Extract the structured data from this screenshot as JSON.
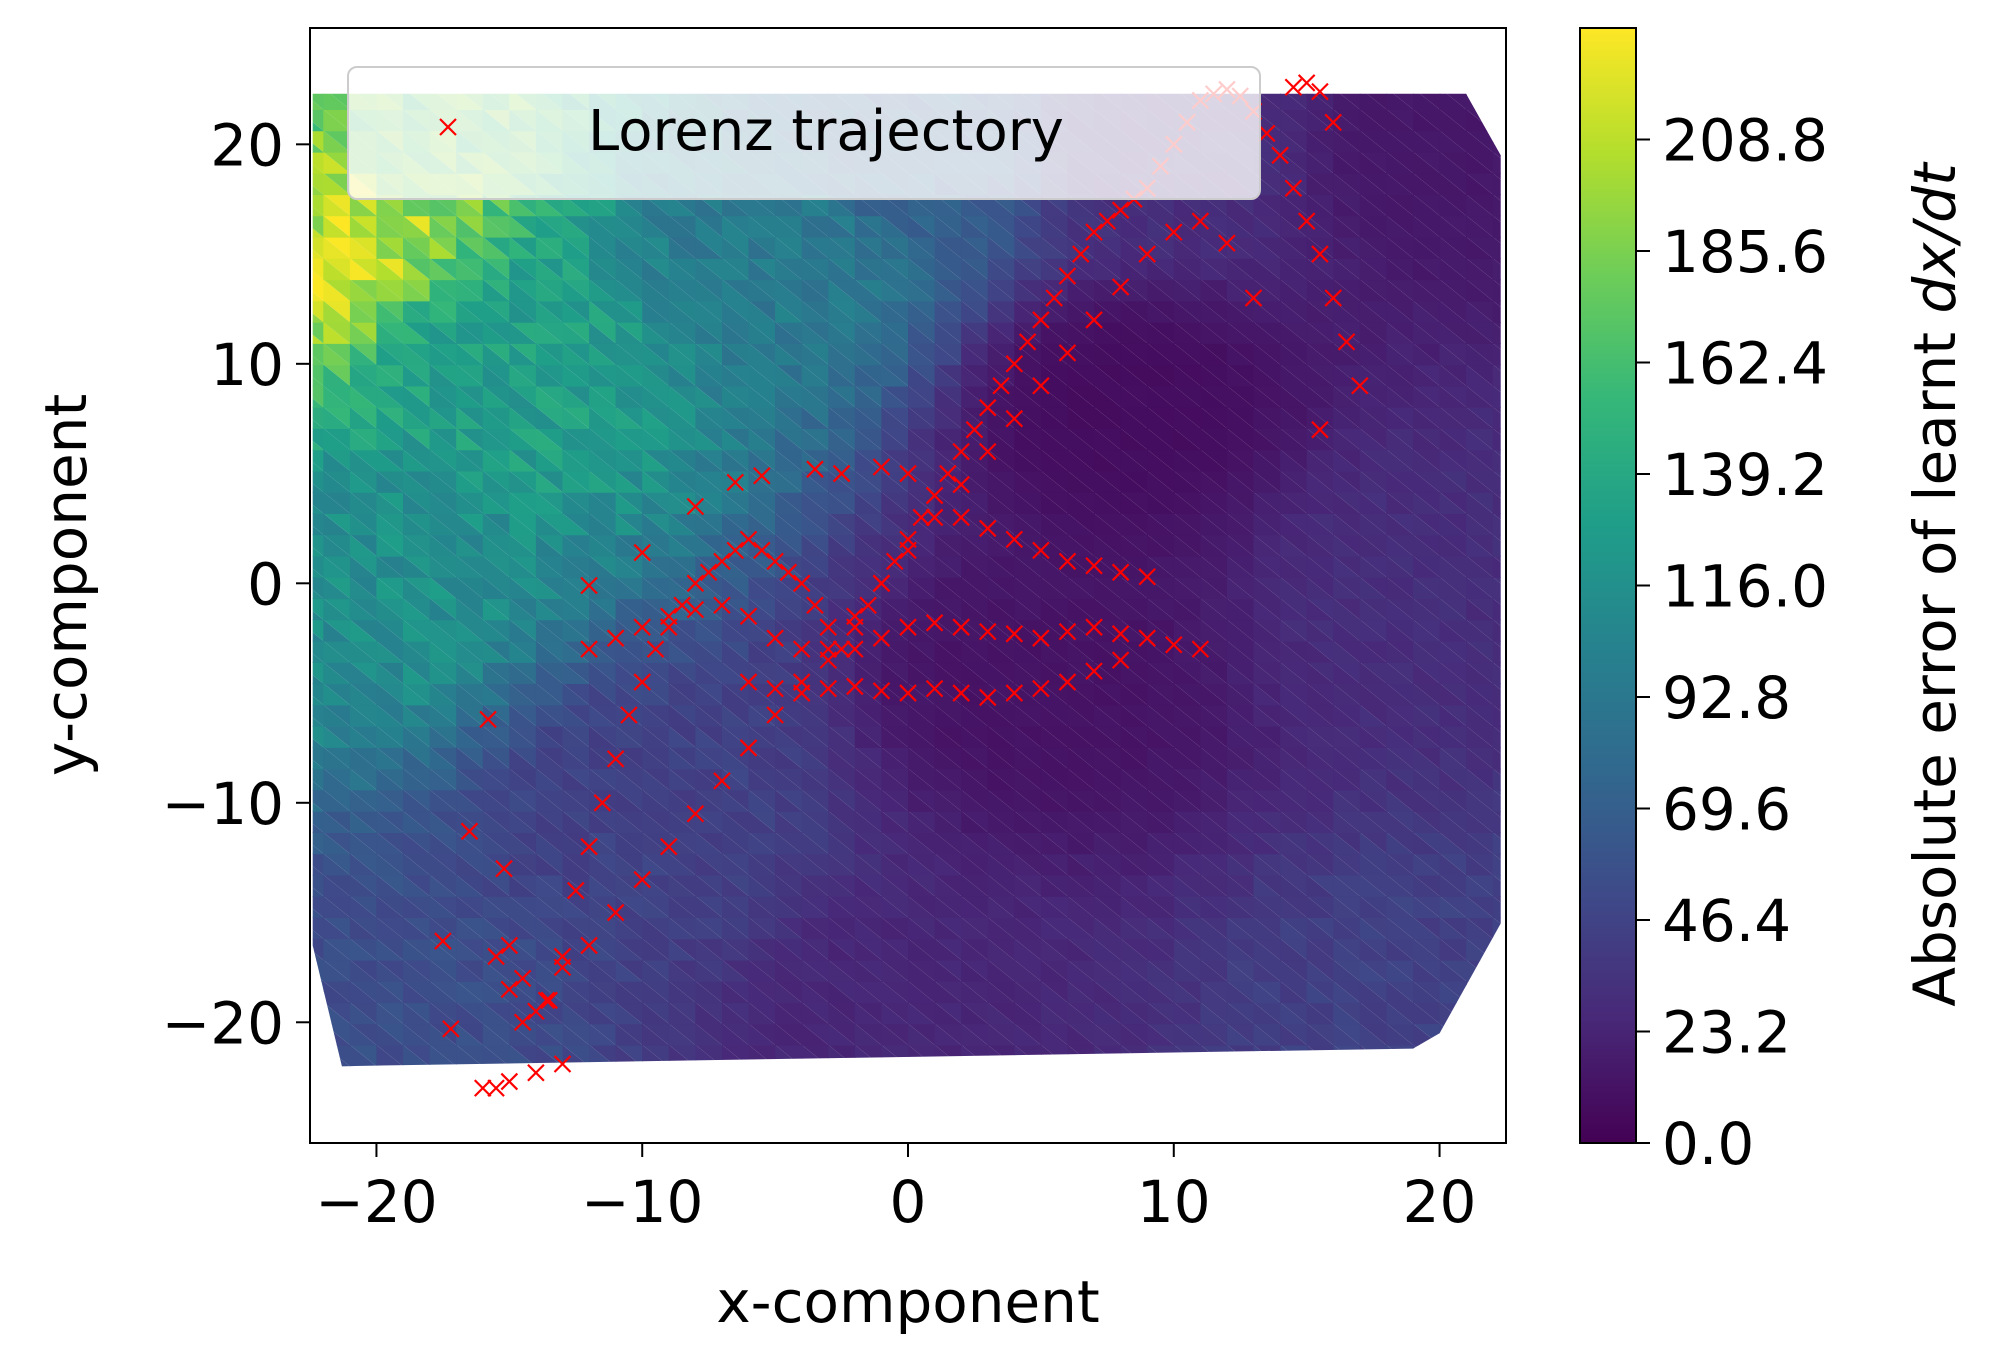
{
  "chart_data": {
    "type": "heatmap",
    "xlabel": "x-component",
    "ylabel": "y-component",
    "xlim": [
      -22.5,
      22.5
    ],
    "ylim": [
      -25.5,
      25.3
    ],
    "x_ticks": [
      -20,
      -10,
      0,
      10,
      20
    ],
    "x_tick_labels": [
      "−20",
      "−10",
      "0",
      "10",
      "20"
    ],
    "y_ticks": [
      -20,
      -10,
      0,
      10,
      20
    ],
    "y_tick_labels": [
      "−20",
      "−10",
      "0",
      "10",
      "20"
    ],
    "grid": false,
    "legend": {
      "position": "top-left",
      "entries": [
        "Lorenz trajectory"
      ]
    },
    "colorbar": {
      "label": "Absolute error of learnt dx/dt",
      "label_prefix": "Absolute error of learnt ",
      "label_math": "dx/dt",
      "colormap": "viridis",
      "range": [
        0,
        232
      ],
      "ticks": [
        0,
        23.2,
        46.4,
        69.6,
        92.8,
        116,
        139.2,
        162.4,
        185.6,
        208.8
      ],
      "tick_labels": [
        "0.0",
        "23.2",
        "46.4",
        "69.6",
        "92.8",
        "116.0",
        "139.2",
        "162.4",
        "185.6",
        "208.8"
      ]
    },
    "heatmap_domain": {
      "polygon": [
        [
          -22.1,
          22.3
        ],
        [
          21.0,
          22.3
        ],
        [
          22.3,
          19.5
        ],
        [
          22.3,
          -15.5
        ],
        [
          20.0,
          -20.5
        ],
        [
          19.0,
          -21.2
        ],
        [
          -21.3,
          -22.0
        ],
        [
          -22.4,
          -16.5
        ],
        [
          -22.4,
          22.3
        ]
      ],
      "error_field_anchors": [
        {
          "x": -22,
          "y": 16,
          "value": 210
        },
        {
          "x": -20,
          "y": 22,
          "value": 175
        },
        {
          "x": -20,
          "y": 0,
          "value": 115
        },
        {
          "x": -15,
          "y": 10,
          "value": 130
        },
        {
          "x": -5,
          "y": 15,
          "value": 95
        },
        {
          "x": 0,
          "y": 20,
          "value": 70
        },
        {
          "x": 10,
          "y": 20,
          "value": 30
        },
        {
          "x": 20,
          "y": 20,
          "value": 15
        },
        {
          "x": 20,
          "y": 0,
          "value": 30
        },
        {
          "x": 20,
          "y": -20,
          "value": 45
        },
        {
          "x": 0,
          "y": -20,
          "value": 25
        },
        {
          "x": -20,
          "y": -20,
          "value": 55
        },
        {
          "x": -10,
          "y": -10,
          "value": 45
        },
        {
          "x": 5,
          "y": -5,
          "value": 12
        },
        {
          "x": 8,
          "y": 8,
          "value": 8
        }
      ]
    },
    "series": [
      {
        "name": "Lorenz trajectory",
        "type": "scatter",
        "marker": "x",
        "color": "#ff0000",
        "x": [
          -17.5,
          -17.2,
          -16.5,
          -15.8,
          -15.2,
          -15.0,
          -14.5,
          -14.0,
          -13.6,
          -13.0,
          -12.5,
          -12.0,
          -11.5,
          -11.0,
          -10.5,
          -10.0,
          -9.5,
          -9.0,
          -8.5,
          -8.0,
          -7.5,
          -7.0,
          -6.5,
          -6.0,
          -5.5,
          -5.0,
          -4.5,
          -4.0,
          -3.5,
          -3.0,
          -2.5,
          -2.0,
          -1.5,
          -1.0,
          -0.5,
          0.0,
          0.5,
          1.0,
          1.5,
          2.0,
          2.5,
          3.0,
          3.5,
          4.0,
          4.5,
          5.0,
          5.5,
          6.0,
          6.5,
          7.0,
          7.5,
          8.0,
          8.5,
          9.0,
          9.5,
          10.0,
          10.5,
          11.0,
          11.5,
          12.0,
          12.5,
          13.0,
          13.5,
          14.0,
          14.5,
          15.0,
          15.5,
          16.0,
          16.5,
          17.0,
          -15.5,
          -15.0,
          -14.5,
          -13.5,
          -13.0,
          -12.0,
          -11.0,
          -10.0,
          -9.0,
          -8.0,
          -7.0,
          -6.0,
          -5.0,
          -4.0,
          -3.0,
          -2.0,
          -1.0,
          0.0,
          1.0,
          2.0,
          3.0,
          4.0,
          5.0,
          6.0,
          7.0,
          8.0,
          9.0,
          10.0,
          11.0,
          12.0,
          13.0,
          -6.5,
          -5.5,
          -3.5,
          -2.5,
          -1.0,
          0.0,
          1.0,
          2.0,
          3.0,
          4.0,
          5.0,
          6.0,
          7.0,
          8.0,
          9.0,
          -12.0,
          -11.0,
          -10.0,
          -9.0,
          -8.0,
          -7.0,
          -6.0,
          -5.0,
          -4.0,
          -3.0,
          -2.0,
          -1.0,
          0.0,
          1.0,
          2.0,
          3.0,
          4.0,
          5.0,
          6.0,
          7.0,
          8.0,
          9.0,
          10.0,
          11.0,
          -6.0,
          -5.0,
          -4.0,
          -3.0,
          -2.0,
          -1.0,
          0.0,
          1.0,
          2.0,
          3.0,
          4.0,
          5.0,
          6.0,
          7.0,
          8.0,
          14.5,
          15.0,
          15.5,
          16.0,
          15.5,
          -16.0,
          -15.5,
          -15.0,
          -14.0,
          -13.0,
          -12.0,
          -10.0,
          -8.0
        ],
        "y": [
          -16.3,
          -20.3,
          -11.3,
          -6.2,
          -13.0,
          -16.5,
          -18.0,
          -19.5,
          -19.0,
          -17.0,
          -14.0,
          -12.0,
          -10.0,
          -8.0,
          -6.0,
          -4.5,
          -3.0,
          -2.0,
          -1.0,
          0.0,
          0.5,
          1.0,
          1.5,
          2.0,
          1.5,
          1.0,
          0.5,
          0.0,
          -1.0,
          -2.0,
          -3.0,
          -2.0,
          -1.0,
          0.0,
          1.0,
          2.0,
          3.0,
          4.0,
          5.0,
          6.0,
          7.0,
          8.0,
          9.0,
          10.0,
          11.0,
          12.0,
          13.0,
          14.0,
          15.0,
          16.0,
          16.5,
          17.0,
          17.5,
          18.0,
          19.0,
          20.0,
          21.0,
          22.0,
          22.3,
          22.5,
          22.2,
          21.5,
          20.5,
          19.5,
          18.0,
          16.5,
          15.0,
          13.0,
          11.0,
          9.0,
          -17.0,
          -18.5,
          -20.0,
          -19.0,
          -17.5,
          -16.5,
          -15.0,
          -13.5,
          -12.0,
          -10.5,
          -9.0,
          -7.5,
          -6.0,
          -4.5,
          -3.0,
          -1.5,
          0.0,
          1.5,
          3.0,
          4.5,
          6.0,
          7.5,
          9.0,
          10.5,
          12.0,
          13.5,
          15.0,
          16.0,
          16.5,
          15.5,
          13.0,
          4.6,
          4.9,
          5.2,
          5.0,
          5.3,
          5.0,
          4.0,
          3.0,
          2.5,
          2.0,
          1.5,
          1.0,
          0.8,
          0.5,
          0.3,
          -3.0,
          -2.5,
          -2.0,
          -1.5,
          -1.2,
          -1.0,
          -1.5,
          -2.5,
          -3.0,
          -3.5,
          -3.0,
          -2.5,
          -2.0,
          -1.8,
          -2.0,
          -2.2,
          -2.3,
          -2.5,
          -2.2,
          -2.0,
          -2.3,
          -2.5,
          -2.8,
          -3.0,
          -4.5,
          -4.8,
          -5.0,
          -4.8,
          -4.7,
          -4.9,
          -5.0,
          -4.8,
          -5.0,
          -5.2,
          -5.0,
          -4.8,
          -4.5,
          -4.0,
          -3.5,
          22.6,
          22.8,
          22.4,
          21.0,
          7.0,
          -23.0,
          -23.0,
          -22.7,
          -22.3,
          -21.9,
          -0.1,
          1.4,
          3.5
        ]
      }
    ]
  }
}
